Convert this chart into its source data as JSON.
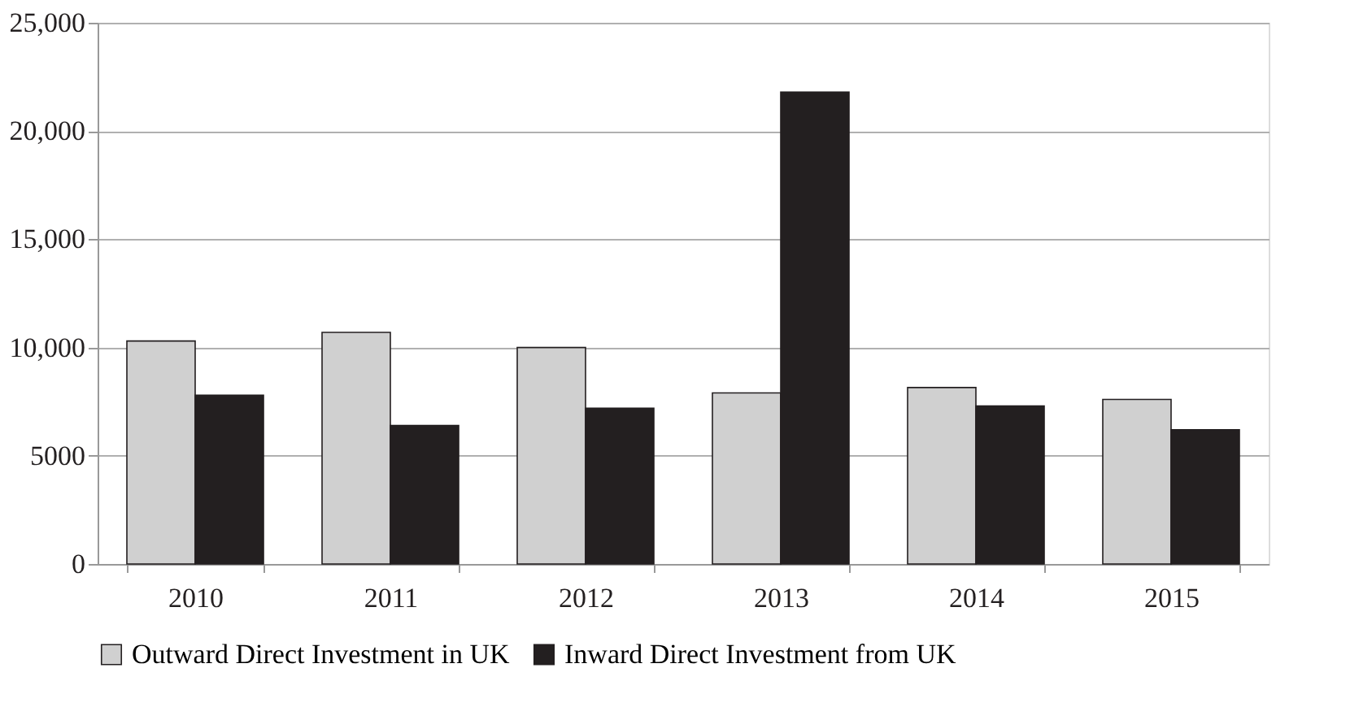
{
  "chart_data": {
    "type": "bar",
    "categories": [
      "2010",
      "2011",
      "2012",
      "2013",
      "2014",
      "2015"
    ],
    "series": [
      {
        "name": "Outward Direct Investment in UK",
        "color": "#d0d0d0",
        "values": [
          10300,
          10700,
          10000,
          7900,
          8150,
          7600
        ]
      },
      {
        "name": "Inward Direct Investment from UK",
        "color": "#231f20",
        "values": [
          7800,
          6400,
          7200,
          21800,
          7300,
          6200
        ]
      }
    ],
    "ylim": [
      0,
      25000
    ],
    "yticks": [
      0,
      {
        "value": 5000,
        "label": "5000"
      },
      {
        "value": 10000,
        "label": "10,000"
      },
      {
        "value": 15000,
        "label": "15,000"
      },
      {
        "value": 20000,
        "label": "20,000"
      },
      {
        "value": 25000,
        "label": "25,000"
      }
    ],
    "grid": "y",
    "legend": "bottom"
  }
}
